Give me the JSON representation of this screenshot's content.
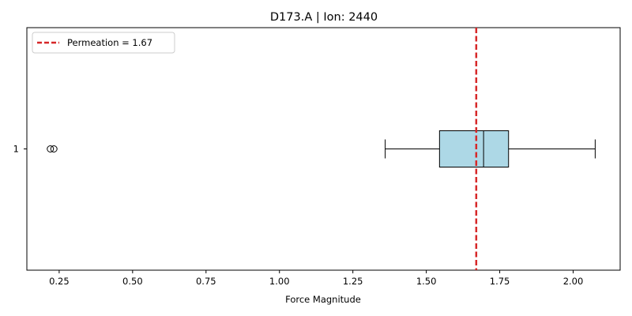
{
  "chart_data": {
    "type": "boxplot",
    "orientation": "horizontal",
    "title": "D173.A | Ion: 2440",
    "xlabel": "Force Magnitude",
    "ylabel": "",
    "xlim": [
      0.14,
      2.16
    ],
    "x_ticks": [
      0.25,
      0.5,
      0.75,
      1.0,
      1.25,
      1.5,
      1.75,
      2.0
    ],
    "x_tick_labels": [
      "0.25",
      "0.50",
      "0.75",
      "1.00",
      "1.25",
      "1.50",
      "1.75",
      "2.00"
    ],
    "y_tick_labels": [
      "1"
    ],
    "grid": false,
    "legend_position": "top-left",
    "boxes": [
      {
        "label": "1",
        "whisker_low": 1.36,
        "q1": 1.545,
        "median": 1.695,
        "q3": 1.78,
        "whisker_high": 2.075,
        "outliers": [
          0.22,
          0.232
        ],
        "fill_color": "#add8e6"
      }
    ],
    "reference_line": {
      "label": "Permeation = 1.67",
      "x": 1.67,
      "color": "#d62728",
      "style": "dashed"
    }
  }
}
